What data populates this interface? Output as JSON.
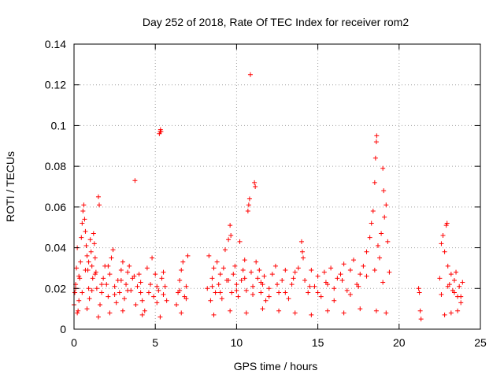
{
  "chart_data": {
    "type": "scatter",
    "title": "Day 252 of 2018, Rate Of TEC Index for receiver rom2",
    "xlabel": "GPS time / hours",
    "ylabel": "ROTI / TECUs",
    "xlim": [
      0,
      25
    ],
    "ylim": [
      0,
      0.14
    ],
    "xticks": [
      "0",
      "5",
      "10",
      "15",
      "20",
      "25"
    ],
    "yticks": [
      "0",
      "0.02",
      "0.04",
      "0.06",
      "0.08",
      "0.1",
      "0.12",
      "0.14"
    ],
    "grid": true,
    "marker": "+",
    "color": "#ff0000",
    "series": [
      {
        "points": [
          [
            0.0,
            0.012
          ],
          [
            0.05,
            0.018
          ],
          [
            0.1,
            0.022
          ],
          [
            0.15,
            0.03
          ],
          [
            0.2,
            0.04
          ],
          [
            0.25,
            0.009
          ],
          [
            0.3,
            0.014
          ],
          [
            0.35,
            0.025
          ],
          [
            0.4,
            0.033
          ],
          [
            0.45,
            0.045
          ],
          [
            0.5,
            0.052
          ],
          [
            0.55,
            0.058
          ],
          [
            0.6,
            0.061
          ],
          [
            0.65,
            0.054
          ],
          [
            0.7,
            0.048
          ],
          [
            0.75,
            0.041
          ],
          [
            0.8,
            0.036
          ],
          [
            0.85,
            0.029
          ],
          [
            0.9,
            0.02
          ],
          [
            0.95,
            0.015
          ],
          [
            1.0,
            0.044
          ],
          [
            1.05,
            0.038
          ],
          [
            1.1,
            0.031
          ],
          [
            1.15,
            0.025
          ],
          [
            1.2,
            0.047
          ],
          [
            1.25,
            0.042
          ],
          [
            1.3,
            0.035
          ],
          [
            1.35,
            0.028
          ],
          [
            1.4,
            0.02
          ],
          [
            1.5,
            0.065
          ],
          [
            1.55,
            0.061
          ],
          [
            1.6,
            0.012
          ],
          [
            1.7,
            0.018
          ],
          [
            1.8,
            0.025
          ],
          [
            1.9,
            0.031
          ],
          [
            2.0,
            0.022
          ],
          [
            2.1,
            0.016
          ],
          [
            2.2,
            0.027
          ],
          [
            2.3,
            0.035
          ],
          [
            2.4,
            0.039
          ],
          [
            2.5,
            0.021
          ],
          [
            2.6,
            0.013
          ],
          [
            2.7,
            0.024
          ],
          [
            2.8,
            0.018
          ],
          [
            2.9,
            0.029
          ],
          [
            3.0,
            0.033
          ],
          [
            3.1,
            0.015
          ],
          [
            3.2,
            0.022
          ],
          [
            3.3,
            0.028
          ],
          [
            3.4,
            0.031
          ],
          [
            3.5,
            0.019
          ],
          [
            3.6,
            0.025
          ],
          [
            3.75,
            0.073
          ],
          [
            3.8,
            0.012
          ],
          [
            3.9,
            0.021
          ],
          [
            4.0,
            0.027
          ],
          [
            4.1,
            0.018
          ],
          [
            4.2,
            0.014
          ],
          [
            4.35,
            0.009
          ],
          [
            4.5,
            0.03
          ],
          [
            4.7,
            0.022
          ],
          [
            4.8,
            0.035
          ],
          [
            4.9,
            0.016
          ],
          [
            5.0,
            0.027
          ],
          [
            5.1,
            0.013
          ],
          [
            5.2,
            0.019
          ],
          [
            5.25,
            0.096
          ],
          [
            5.3,
            0.097
          ],
          [
            5.32,
            0.098
          ],
          [
            5.35,
            0.097
          ],
          [
            5.4,
            0.025
          ],
          [
            5.5,
            0.028
          ],
          [
            5.6,
            0.021
          ],
          [
            5.7,
            0.014
          ],
          [
            6.3,
            0.012
          ],
          [
            6.4,
            0.018
          ],
          [
            6.5,
            0.024
          ],
          [
            6.6,
            0.029
          ],
          [
            6.7,
            0.033
          ],
          [
            6.8,
            0.016
          ],
          [
            6.9,
            0.021
          ],
          [
            7.0,
            0.036
          ],
          [
            8.2,
            0.02
          ],
          [
            8.3,
            0.036
          ],
          [
            8.4,
            0.014
          ],
          [
            8.5,
            0.025
          ],
          [
            8.6,
            0.03
          ],
          [
            8.7,
            0.018
          ],
          [
            8.8,
            0.033
          ],
          [
            8.9,
            0.022
          ],
          [
            9.0,
            0.027
          ],
          [
            9.1,
            0.015
          ],
          [
            9.2,
            0.03
          ],
          [
            9.3,
            0.039
          ],
          [
            9.4,
            0.024
          ],
          [
            9.5,
            0.044
          ],
          [
            9.6,
            0.051
          ],
          [
            9.65,
            0.046
          ],
          [
            9.7,
            0.018
          ],
          [
            9.8,
            0.027
          ],
          [
            9.9,
            0.031
          ],
          [
            10.0,
            0.022
          ],
          [
            10.1,
            0.016
          ],
          [
            10.2,
            0.043
          ],
          [
            10.3,
            0.024
          ],
          [
            10.4,
            0.029
          ],
          [
            10.5,
            0.034
          ],
          [
            10.6,
            0.019
          ],
          [
            10.7,
            0.058
          ],
          [
            10.75,
            0.061
          ],
          [
            10.8,
            0.064
          ],
          [
            10.85,
            0.125
          ],
          [
            10.9,
            0.028
          ],
          [
            11.0,
            0.021
          ],
          [
            11.1,
            0.072
          ],
          [
            11.15,
            0.07
          ],
          [
            11.2,
            0.033
          ],
          [
            11.3,
            0.025
          ],
          [
            11.4,
            0.029
          ],
          [
            11.5,
            0.018
          ],
          [
            11.6,
            0.022
          ],
          [
            11.7,
            0.026
          ],
          [
            11.8,
            0.014
          ],
          [
            12.0,
            0.02
          ],
          [
            12.2,
            0.027
          ],
          [
            12.4,
            0.031
          ],
          [
            12.6,
            0.018
          ],
          [
            12.8,
            0.024
          ],
          [
            13.0,
            0.029
          ],
          [
            13.2,
            0.015
          ],
          [
            13.4,
            0.022
          ],
          [
            13.6,
            0.028
          ],
          [
            13.8,
            0.03
          ],
          [
            14.0,
            0.043
          ],
          [
            14.05,
            0.038
          ],
          [
            14.1,
            0.035
          ],
          [
            14.2,
            0.024
          ],
          [
            14.4,
            0.018
          ],
          [
            14.6,
            0.029
          ],
          [
            14.8,
            0.021
          ],
          [
            15.0,
            0.026
          ],
          [
            15.2,
            0.016
          ],
          [
            15.4,
            0.028
          ],
          [
            15.6,
            0.022
          ],
          [
            15.8,
            0.03
          ],
          [
            16.0,
            0.014
          ],
          [
            16.2,
            0.025
          ],
          [
            16.4,
            0.027
          ],
          [
            16.6,
            0.032
          ],
          [
            16.8,
            0.019
          ],
          [
            17.0,
            0.029
          ],
          [
            17.2,
            0.034
          ],
          [
            17.4,
            0.022
          ],
          [
            17.6,
            0.027
          ],
          [
            17.8,
            0.031
          ],
          [
            18.0,
            0.038
          ],
          [
            18.2,
            0.045
          ],
          [
            18.3,
            0.052
          ],
          [
            18.4,
            0.058
          ],
          [
            18.5,
            0.072
          ],
          [
            18.55,
            0.084
          ],
          [
            18.6,
            0.092
          ],
          [
            18.62,
            0.095
          ],
          [
            18.7,
            0.041
          ],
          [
            18.8,
            0.035
          ],
          [
            18.9,
            0.047
          ],
          [
            19.0,
            0.079
          ],
          [
            19.05,
            0.068
          ],
          [
            19.1,
            0.055
          ],
          [
            19.2,
            0.061
          ],
          [
            19.3,
            0.043
          ],
          [
            19.4,
            0.028
          ],
          [
            21.2,
            0.02
          ],
          [
            21.25,
            0.018
          ],
          [
            21.3,
            0.009
          ],
          [
            21.35,
            0.005
          ],
          [
            22.5,
            0.025
          ],
          [
            22.6,
            0.042
          ],
          [
            22.7,
            0.046
          ],
          [
            22.8,
            0.038
          ],
          [
            22.9,
            0.051
          ],
          [
            22.95,
            0.052
          ],
          [
            23.0,
            0.031
          ],
          [
            23.1,
            0.022
          ],
          [
            23.2,
            0.027
          ],
          [
            23.3,
            0.019
          ],
          [
            23.4,
            0.024
          ],
          [
            23.5,
            0.028
          ],
          [
            23.6,
            0.016
          ],
          [
            23.7,
            0.021
          ],
          [
            23.8,
            0.013
          ],
          [
            23.9,
            0.023
          ],
          [
            0.1,
            0.02
          ],
          [
            0.3,
            0.026
          ],
          [
            0.5,
            0.018
          ],
          [
            0.7,
            0.029
          ],
          [
            0.9,
            0.033
          ],
          [
            1.1,
            0.019
          ],
          [
            1.3,
            0.027
          ],
          [
            1.7,
            0.022
          ],
          [
            2.1,
            0.031
          ],
          [
            2.5,
            0.017
          ],
          [
            2.9,
            0.024
          ],
          [
            3.3,
            0.019
          ],
          [
            3.7,
            0.026
          ],
          [
            4.1,
            0.023
          ],
          [
            4.6,
            0.018
          ],
          [
            5.1,
            0.021
          ],
          [
            5.5,
            0.017
          ],
          [
            6.5,
            0.019
          ],
          [
            6.9,
            0.015
          ],
          [
            8.5,
            0.021
          ],
          [
            9.0,
            0.018
          ],
          [
            9.5,
            0.024
          ],
          [
            10.0,
            0.019
          ],
          [
            10.5,
            0.025
          ],
          [
            11.0,
            0.017
          ],
          [
            11.5,
            0.023
          ],
          [
            12.0,
            0.016
          ],
          [
            12.5,
            0.022
          ],
          [
            13.0,
            0.018
          ],
          [
            13.5,
            0.025
          ],
          [
            14.5,
            0.021
          ],
          [
            15.0,
            0.018
          ],
          [
            15.5,
            0.023
          ],
          [
            16.0,
            0.02
          ],
          [
            16.5,
            0.024
          ],
          [
            17.0,
            0.017
          ],
          [
            17.5,
            0.021
          ],
          [
            18.0,
            0.026
          ],
          [
            18.5,
            0.029
          ],
          [
            19.0,
            0.023
          ],
          [
            22.6,
            0.017
          ],
          [
            23.0,
            0.021
          ],
          [
            23.4,
            0.018
          ],
          [
            23.8,
            0.016
          ],
          [
            0.2,
            0.008
          ],
          [
            0.8,
            0.01
          ],
          [
            1.5,
            0.006
          ],
          [
            2.2,
            0.008
          ],
          [
            3.0,
            0.009
          ],
          [
            4.2,
            0.007
          ],
          [
            5.3,
            0.006
          ],
          [
            6.6,
            0.008
          ],
          [
            8.6,
            0.007
          ],
          [
            9.6,
            0.009
          ],
          [
            10.6,
            0.008
          ],
          [
            11.6,
            0.01
          ],
          [
            12.6,
            0.009
          ],
          [
            13.6,
            0.008
          ],
          [
            14.6,
            0.007
          ],
          [
            15.6,
            0.009
          ],
          [
            16.6,
            0.008
          ],
          [
            17.6,
            0.01
          ],
          [
            18.6,
            0.009
          ],
          [
            19.2,
            0.008
          ],
          [
            22.8,
            0.007
          ],
          [
            23.2,
            0.008
          ],
          [
            23.6,
            0.009
          ]
        ]
      }
    ]
  }
}
